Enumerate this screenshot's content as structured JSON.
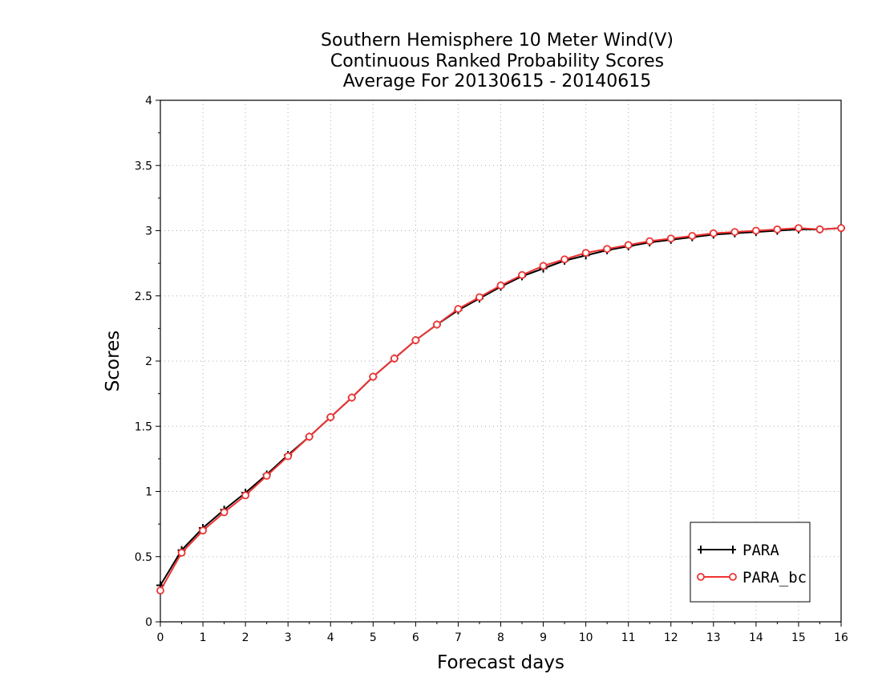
{
  "chart_data": {
    "type": "line",
    "title_lines": [
      "Southern Hemisphere 10 Meter Wind(V)",
      "Continuous Ranked Probability Scores",
      "Average For 20130615 - 20140615"
    ],
    "xlabel": "Forecast days",
    "ylabel": "Scores",
    "xlim": [
      0,
      16
    ],
    "ylim": [
      0,
      4
    ],
    "xticks": [
      "0",
      "1",
      "2",
      "3",
      "4",
      "5",
      "6",
      "7",
      "8",
      "9",
      "10",
      "11",
      "12",
      "13",
      "14",
      "15",
      "16"
    ],
    "yticks": [
      "0",
      "0.5",
      "1",
      "1.5",
      "2",
      "2.5",
      "3",
      "3.5",
      "4"
    ],
    "grid": true,
    "legend_position": "bottom-right",
    "x": [
      0,
      0.5,
      1,
      1.5,
      2,
      2.5,
      3,
      3.5,
      4,
      4.5,
      5,
      5.5,
      6,
      6.5,
      7,
      7.5,
      8,
      8.5,
      9,
      9.5,
      10,
      10.5,
      11,
      11.5,
      12,
      12.5,
      13,
      13.5,
      14,
      14.5,
      15,
      15.5,
      16
    ],
    "series": [
      {
        "name": "PARA",
        "color": "#000000",
        "marker": "plus",
        "values": [
          0.28,
          0.55,
          0.72,
          0.86,
          0.99,
          1.13,
          1.28,
          1.42,
          1.57,
          1.72,
          1.88,
          2.02,
          2.16,
          2.28,
          2.39,
          2.48,
          2.57,
          2.65,
          2.71,
          2.77,
          2.81,
          2.85,
          2.88,
          2.91,
          2.93,
          2.95,
          2.97,
          2.98,
          2.99,
          3.0,
          3.01,
          3.01,
          3.02
        ]
      },
      {
        "name": "PARA_bc",
        "color": "#ee3333",
        "marker": "circle",
        "values": [
          0.24,
          0.53,
          0.7,
          0.84,
          0.97,
          1.12,
          1.27,
          1.42,
          1.57,
          1.72,
          1.88,
          2.02,
          2.16,
          2.28,
          2.4,
          2.49,
          2.58,
          2.66,
          2.73,
          2.78,
          2.83,
          2.86,
          2.89,
          2.92,
          2.94,
          2.96,
          2.98,
          2.99,
          3.0,
          3.01,
          3.02,
          3.01,
          3.02
        ]
      }
    ]
  }
}
